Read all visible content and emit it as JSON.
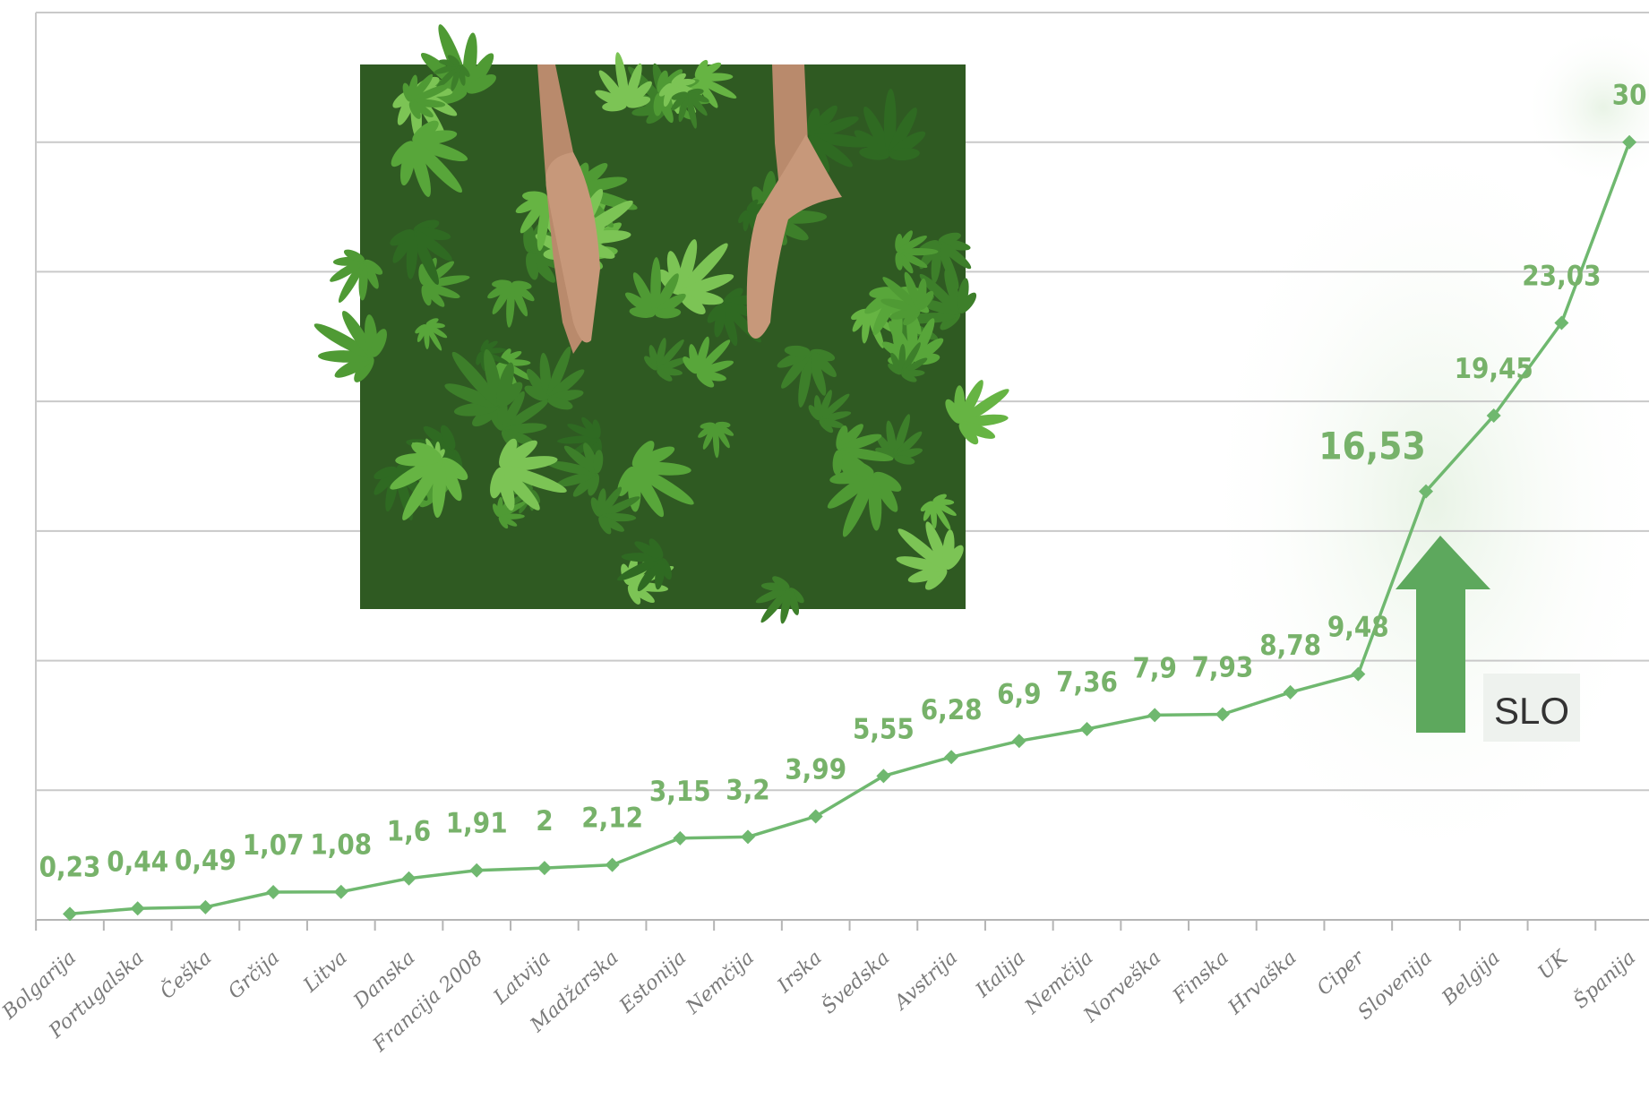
{
  "colors": {
    "accent": "#6fb86f",
    "label": "#77b26a",
    "arrow": "#5da85d"
  },
  "image": {
    "icon": "cannabis-plants-photo"
  },
  "annotation": {
    "label": "SLO",
    "icon": "up-arrow-icon",
    "target_category": "Slovenija"
  },
  "chart_data": {
    "type": "line",
    "categories": [
      "Bolgarija",
      "Portugalska",
      "Češka",
      "Grčija",
      "Litva",
      "Danska",
      "Francija 2008",
      "Latvija",
      "Madžarska",
      "Estonija",
      "Nemčija",
      "Irska",
      "Švedska",
      "Avstrija",
      "Italija",
      "Nemčija",
      "Norveška",
      "Finska",
      "Hrvaška",
      "Ciper",
      "Slovenija",
      "Belgija",
      "UK",
      "Španija"
    ],
    "series": [
      {
        "values": [
          0.23,
          0.44,
          0.49,
          1.07,
          1.08,
          1.6,
          1.91,
          2,
          2.12,
          3.15,
          3.2,
          3.99,
          5.55,
          6.28,
          6.9,
          7.36,
          7.9,
          7.93,
          8.78,
          9.48,
          16.53,
          19.45,
          23.03,
          30
        ],
        "labels": [
          "0,23",
          "0,44",
          "0,49",
          "1,07",
          "1,08",
          "1,6",
          "1,91",
          "2",
          "2,12",
          "3,15",
          "3,2",
          "3,99",
          "5,55",
          "6,28",
          "6,9",
          "7,36",
          "7,9",
          "7,93",
          "8,78",
          "9,48",
          "16,53",
          "19,45",
          "23,03",
          "30"
        ]
      }
    ],
    "ylim": [
      0,
      35
    ],
    "grid": true,
    "title": "",
    "xlabel": "",
    "ylabel": ""
  }
}
